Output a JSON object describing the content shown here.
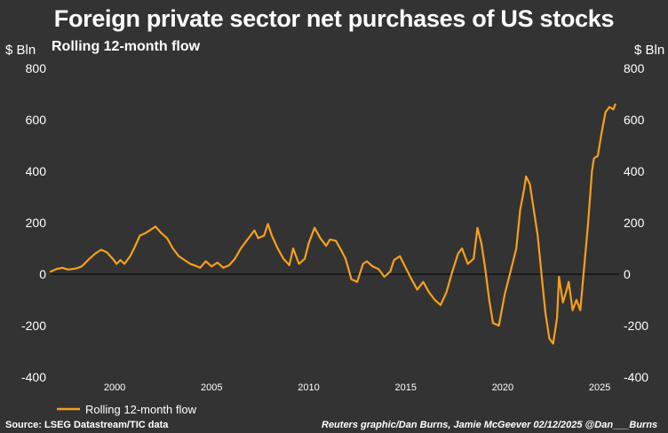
{
  "header": {
    "title": "Foreign private sector net purchases of US stocks",
    "subtitle": "Rolling 12-month flow",
    "unit_left": "$ Bln",
    "unit_right": "$ Bln"
  },
  "footer": {
    "source": "Source: LSEG Datastream/TIC data",
    "credit": "Reuters graphic/Dan Burns, Jamie McGeever 02/12/2025 @Dan___Burns"
  },
  "colors": {
    "background": "#333333",
    "line": "#f5a01c",
    "zero_line": "#000000",
    "text": "#ffffff"
  },
  "chart_data": {
    "type": "line",
    "title": "Foreign private sector net purchases of US stocks",
    "subtitle": "Rolling 12-month flow",
    "ylabel": "$ Bln",
    "ylim": [
      -400,
      800
    ],
    "yticks": [
      "800",
      "600",
      "400",
      "200",
      "0",
      "-200",
      "-400"
    ],
    "xlim": [
      1996.7,
      2026.0
    ],
    "xticks": [
      "2000",
      "2005",
      "2010",
      "2015",
      "2020",
      "2025"
    ],
    "grid": false,
    "legend": "bottom-left",
    "series": [
      {
        "name": "Rolling 12-month flow",
        "x": [
          1996.7,
          1997.0,
          1997.3,
          1997.6,
          1998.0,
          1998.3,
          1998.7,
          1999.0,
          1999.3,
          1999.6,
          1999.9,
          2000.1,
          2000.3,
          2000.5,
          2000.8,
          2001.0,
          2001.3,
          2001.6,
          2001.9,
          2002.1,
          2002.4,
          2002.7,
          2003.0,
          2003.3,
          2003.6,
          2003.9,
          2004.1,
          2004.4,
          2004.7,
          2005.0,
          2005.3,
          2005.6,
          2005.9,
          2006.2,
          2006.5,
          2006.8,
          2007.0,
          2007.2,
          2007.4,
          2007.7,
          2007.9,
          2008.1,
          2008.4,
          2008.7,
          2009.0,
          2009.2,
          2009.5,
          2009.8,
          2010.0,
          2010.3,
          2010.6,
          2010.9,
          2011.1,
          2011.4,
          2011.7,
          2011.9,
          2012.2,
          2012.5,
          2012.8,
          2013.0,
          2013.3,
          2013.6,
          2013.9,
          2014.2,
          2014.4,
          2014.7,
          2015.0,
          2015.3,
          2015.6,
          2015.9,
          2016.2,
          2016.5,
          2016.8,
          2017.1,
          2017.4,
          2017.7,
          2017.9,
          2018.2,
          2018.5,
          2018.7,
          2018.9,
          2019.1,
          2019.3,
          2019.5,
          2019.8,
          2020.1,
          2020.4,
          2020.7,
          2020.9,
          2021.1,
          2021.2,
          2021.4,
          2021.6,
          2021.8,
          2022.0,
          2022.2,
          2022.4,
          2022.6,
          2022.8,
          2022.9,
          2023.1,
          2023.3,
          2023.4,
          2023.6,
          2023.8,
          2024.0,
          2024.2,
          2024.4,
          2024.6,
          2024.7,
          2024.9,
          2025.1,
          2025.3,
          2025.5,
          2025.7,
          2025.8
        ],
        "values": [
          10,
          20,
          25,
          18,
          22,
          30,
          60,
          80,
          95,
          85,
          60,
          40,
          55,
          40,
          70,
          100,
          150,
          160,
          175,
          185,
          160,
          140,
          100,
          70,
          55,
          40,
          35,
          25,
          50,
          30,
          45,
          25,
          35,
          60,
          100,
          130,
          150,
          170,
          140,
          150,
          195,
          150,
          100,
          60,
          35,
          100,
          40,
          60,
          120,
          180,
          140,
          110,
          135,
          130,
          90,
          60,
          -20,
          -30,
          40,
          50,
          30,
          20,
          -10,
          10,
          55,
          70,
          25,
          -20,
          -60,
          -30,
          -70,
          -100,
          -120,
          -70,
          10,
          80,
          100,
          40,
          60,
          180,
          120,
          20,
          -100,
          -190,
          -200,
          -80,
          10,
          100,
          250,
          330,
          380,
          350,
          250,
          150,
          0,
          -150,
          -250,
          -270,
          -170,
          -10,
          -110,
          -60,
          -30,
          -140,
          -100,
          -140,
          30,
          200,
          400,
          450,
          460,
          550,
          630,
          650,
          640,
          660
        ]
      }
    ]
  }
}
